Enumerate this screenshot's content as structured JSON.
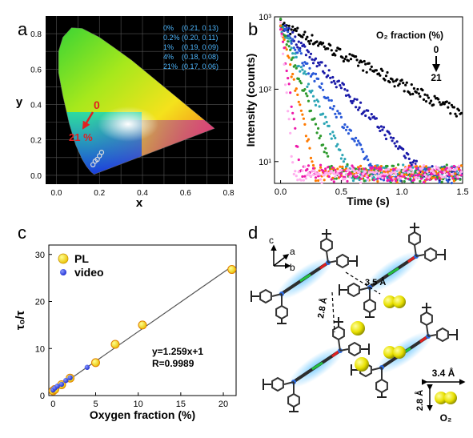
{
  "panels": {
    "a": {
      "letter": "a",
      "legend": [
        {
          "pct": "0%",
          "coord": "(0.21, 0.13)"
        },
        {
          "pct": "0.2%",
          "coord": "(0.20, 0.11)"
        },
        {
          "pct": "1%",
          "coord": "(0.19, 0.09)"
        },
        {
          "pct": "4%",
          "coord": "(0.18, 0.08)"
        },
        {
          "pct": "21%",
          "coord": "(0.17, 0.06)"
        }
      ],
      "arrow_start_label": "0",
      "arrow_end_label": "21 %"
    },
    "b": {
      "letter": "b",
      "legend_title": "O₂ fraction (%)",
      "legend_top": "0",
      "legend_bottom": "21"
    },
    "c": {
      "letter": "c",
      "legend": [
        {
          "label": "PL",
          "color": "#f5e62e"
        },
        {
          "label": "video",
          "color": "#3344dd"
        }
      ],
      "equation": "y=1.259x+1",
      "r_value": "R=0.9989"
    },
    "d": {
      "letter": "d",
      "axis_c": "c",
      "axis_a": "a",
      "axis_b": "b",
      "dist_1": "2.8 Å",
      "dist_2": "3.5 Å",
      "o2_width": "3.4 Å",
      "o2_height": "2.8 Å",
      "o2_label": "O₂"
    }
  },
  "chart_data": [
    {
      "panel": "a",
      "type": "scatter",
      "title": "",
      "xlabel": "x",
      "ylabel": "y",
      "xlim": [
        -0.05,
        0.82
      ],
      "ylim": [
        -0.05,
        0.9
      ],
      "xticks": [
        "0.0",
        "0.2",
        "0.4",
        "0.6",
        "0.8"
      ],
      "yticks": [
        "0.0",
        "0.2",
        "0.4",
        "0.6",
        "0.8"
      ],
      "grid": true,
      "series": [
        {
          "name": "",
          "x": [
            0.21,
            0.2,
            0.19,
            0.18,
            0.17
          ],
          "y": [
            0.13,
            0.11,
            0.09,
            0.08,
            0.06
          ],
          "color": "#dddddd"
        }
      ]
    },
    {
      "panel": "b",
      "type": "scatter",
      "title": "",
      "xlabel": "Time (s)",
      "ylabel": "Intensity (counts)",
      "xlim": [
        -0.05,
        1.5
      ],
      "yscale": "log",
      "ylim": [
        5,
        1000
      ],
      "xticks": [
        "0.0",
        "0.5",
        "1.0",
        "1.5"
      ],
      "yticks": [
        "10¹",
        "10²",
        "10³"
      ],
      "series": [
        {
          "name": "0",
          "color": "#000000",
          "tau": 0.52
        },
        {
          "name": "",
          "color": "#1a1aa8",
          "tau": 0.25
        },
        {
          "name": "",
          "color": "#2a5ad8",
          "tau": 0.165
        },
        {
          "name": "",
          "color": "#2ea6b6",
          "tau": 0.12
        },
        {
          "name": "",
          "color": "#2e9a2e",
          "tau": 0.09
        },
        {
          "name": "",
          "color": "#ff7a00",
          "tau": 0.06
        },
        {
          "name": "",
          "color": "#ee1aaa",
          "tau": 0.035
        },
        {
          "name": "21",
          "color": "#ffb0ee",
          "tau": 0.022
        }
      ]
    },
    {
      "panel": "c",
      "type": "scatter",
      "title": "",
      "xlabel": "Oxygen fraction (%)",
      "ylabel": "τ₀/τ",
      "xlim": [
        -0.5,
        21.5
      ],
      "ylim": [
        0,
        32
      ],
      "xticks": [
        "0",
        "5",
        "10",
        "15",
        "20"
      ],
      "yticks": [
        "0",
        "10",
        "20",
        "30"
      ],
      "fit": {
        "slope": 1.259,
        "intercept": 1,
        "x_range": [
          0,
          21
        ]
      },
      "series": [
        {
          "name": "PL",
          "x": [
            0,
            0.2,
            1,
            2,
            5,
            7.3,
            10.5,
            21
          ],
          "y": [
            1,
            1.3,
            2.3,
            3.7,
            7,
            10.9,
            15,
            26.8
          ]
        },
        {
          "name": "video",
          "x": [
            0,
            0.2,
            0.5,
            1,
            1.5,
            2,
            4
          ],
          "y": [
            1.2,
            1.6,
            2,
            2.4,
            3.2,
            3.8,
            6
          ]
        }
      ]
    }
  ]
}
